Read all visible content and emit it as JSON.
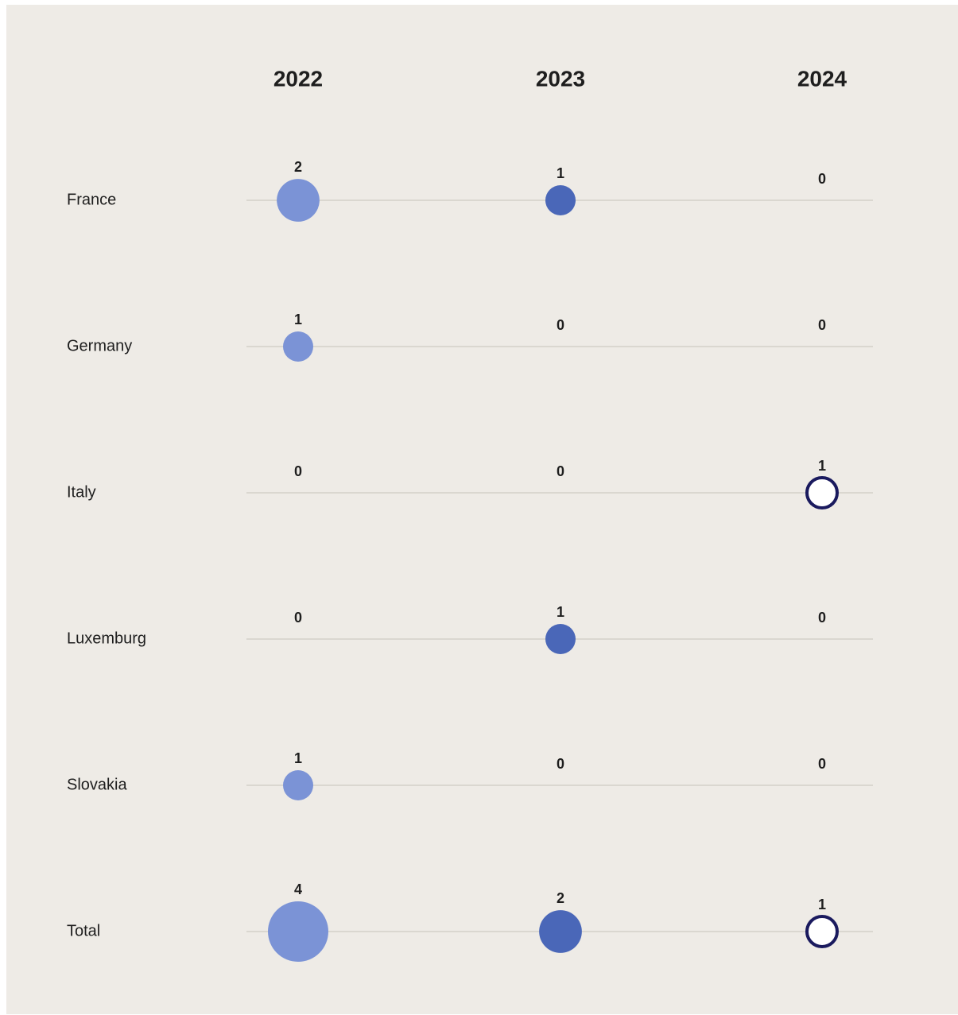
{
  "chart_data": {
    "type": "bubble-matrix",
    "columns": [
      "2022",
      "2023",
      "2024"
    ],
    "rows": [
      {
        "label": "France",
        "values": [
          2,
          1,
          0
        ]
      },
      {
        "label": "Germany",
        "values": [
          1,
          0,
          0
        ]
      },
      {
        "label": "Italy",
        "values": [
          0,
          0,
          1
        ]
      },
      {
        "label": "Luxemburg",
        "values": [
          0,
          1,
          0
        ]
      },
      {
        "label": "Slovakia",
        "values": [
          1,
          0,
          0
        ]
      },
      {
        "label": "Total",
        "values": [
          4,
          2,
          1
        ]
      }
    ],
    "series_colors": {
      "2022": "#7b93d6",
      "2023": "#4a67b8",
      "2024_fill": "#ffffff",
      "2024_stroke": "#1a1a5e"
    },
    "background": "#eeebe6",
    "line_color": "#cfcbc4",
    "grid": false,
    "legend": "none"
  }
}
